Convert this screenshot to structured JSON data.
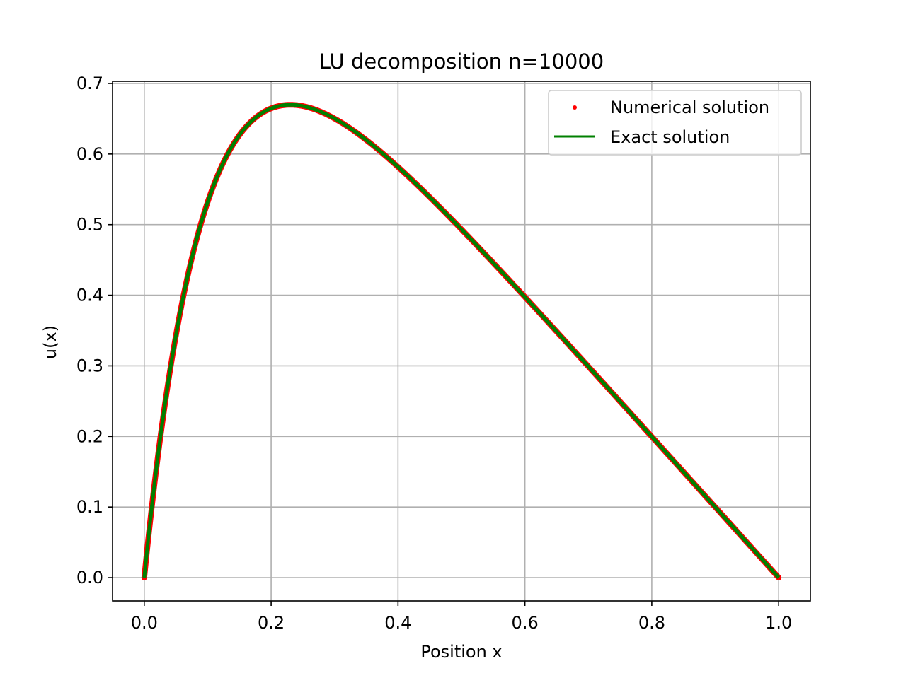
{
  "chart_data": {
    "type": "line",
    "title": "LU decomposition n=10000",
    "xlabel": "Position x",
    "ylabel": "u(x)",
    "xlim": [
      -0.05,
      1.05
    ],
    "ylim": [
      -0.033,
      0.703
    ],
    "xticks": [
      0.0,
      0.2,
      0.4,
      0.6,
      0.8,
      1.0
    ],
    "xtick_labels": [
      "0.0",
      "0.2",
      "0.4",
      "0.6",
      "0.8",
      "1.0"
    ],
    "yticks": [
      0.0,
      0.1,
      0.2,
      0.3,
      0.4,
      0.5,
      0.6,
      0.7
    ],
    "ytick_labels": [
      "0.0",
      "0.1",
      "0.2",
      "0.3",
      "0.4",
      "0.5",
      "0.6",
      "0.7"
    ],
    "grid": true,
    "legend_position": "top-right",
    "series": [
      {
        "name": "Numerical solution",
        "style": "markers",
        "color": "#ff0000",
        "function": "1 - (1 - exp(-10)) * x - exp(-10 * x)",
        "x_range": [
          0,
          1
        ],
        "n_points": 10000
      },
      {
        "name": "Exact solution",
        "style": "line",
        "color": "#008000",
        "function": "1 - (1 - exp(-10)) * x - exp(-10 * x)",
        "x_range": [
          0,
          1
        ]
      }
    ]
  },
  "colors": {
    "grid": "#b0b0b0",
    "axes": "#000000",
    "numerical": "#ff0000",
    "exact": "#008000"
  }
}
